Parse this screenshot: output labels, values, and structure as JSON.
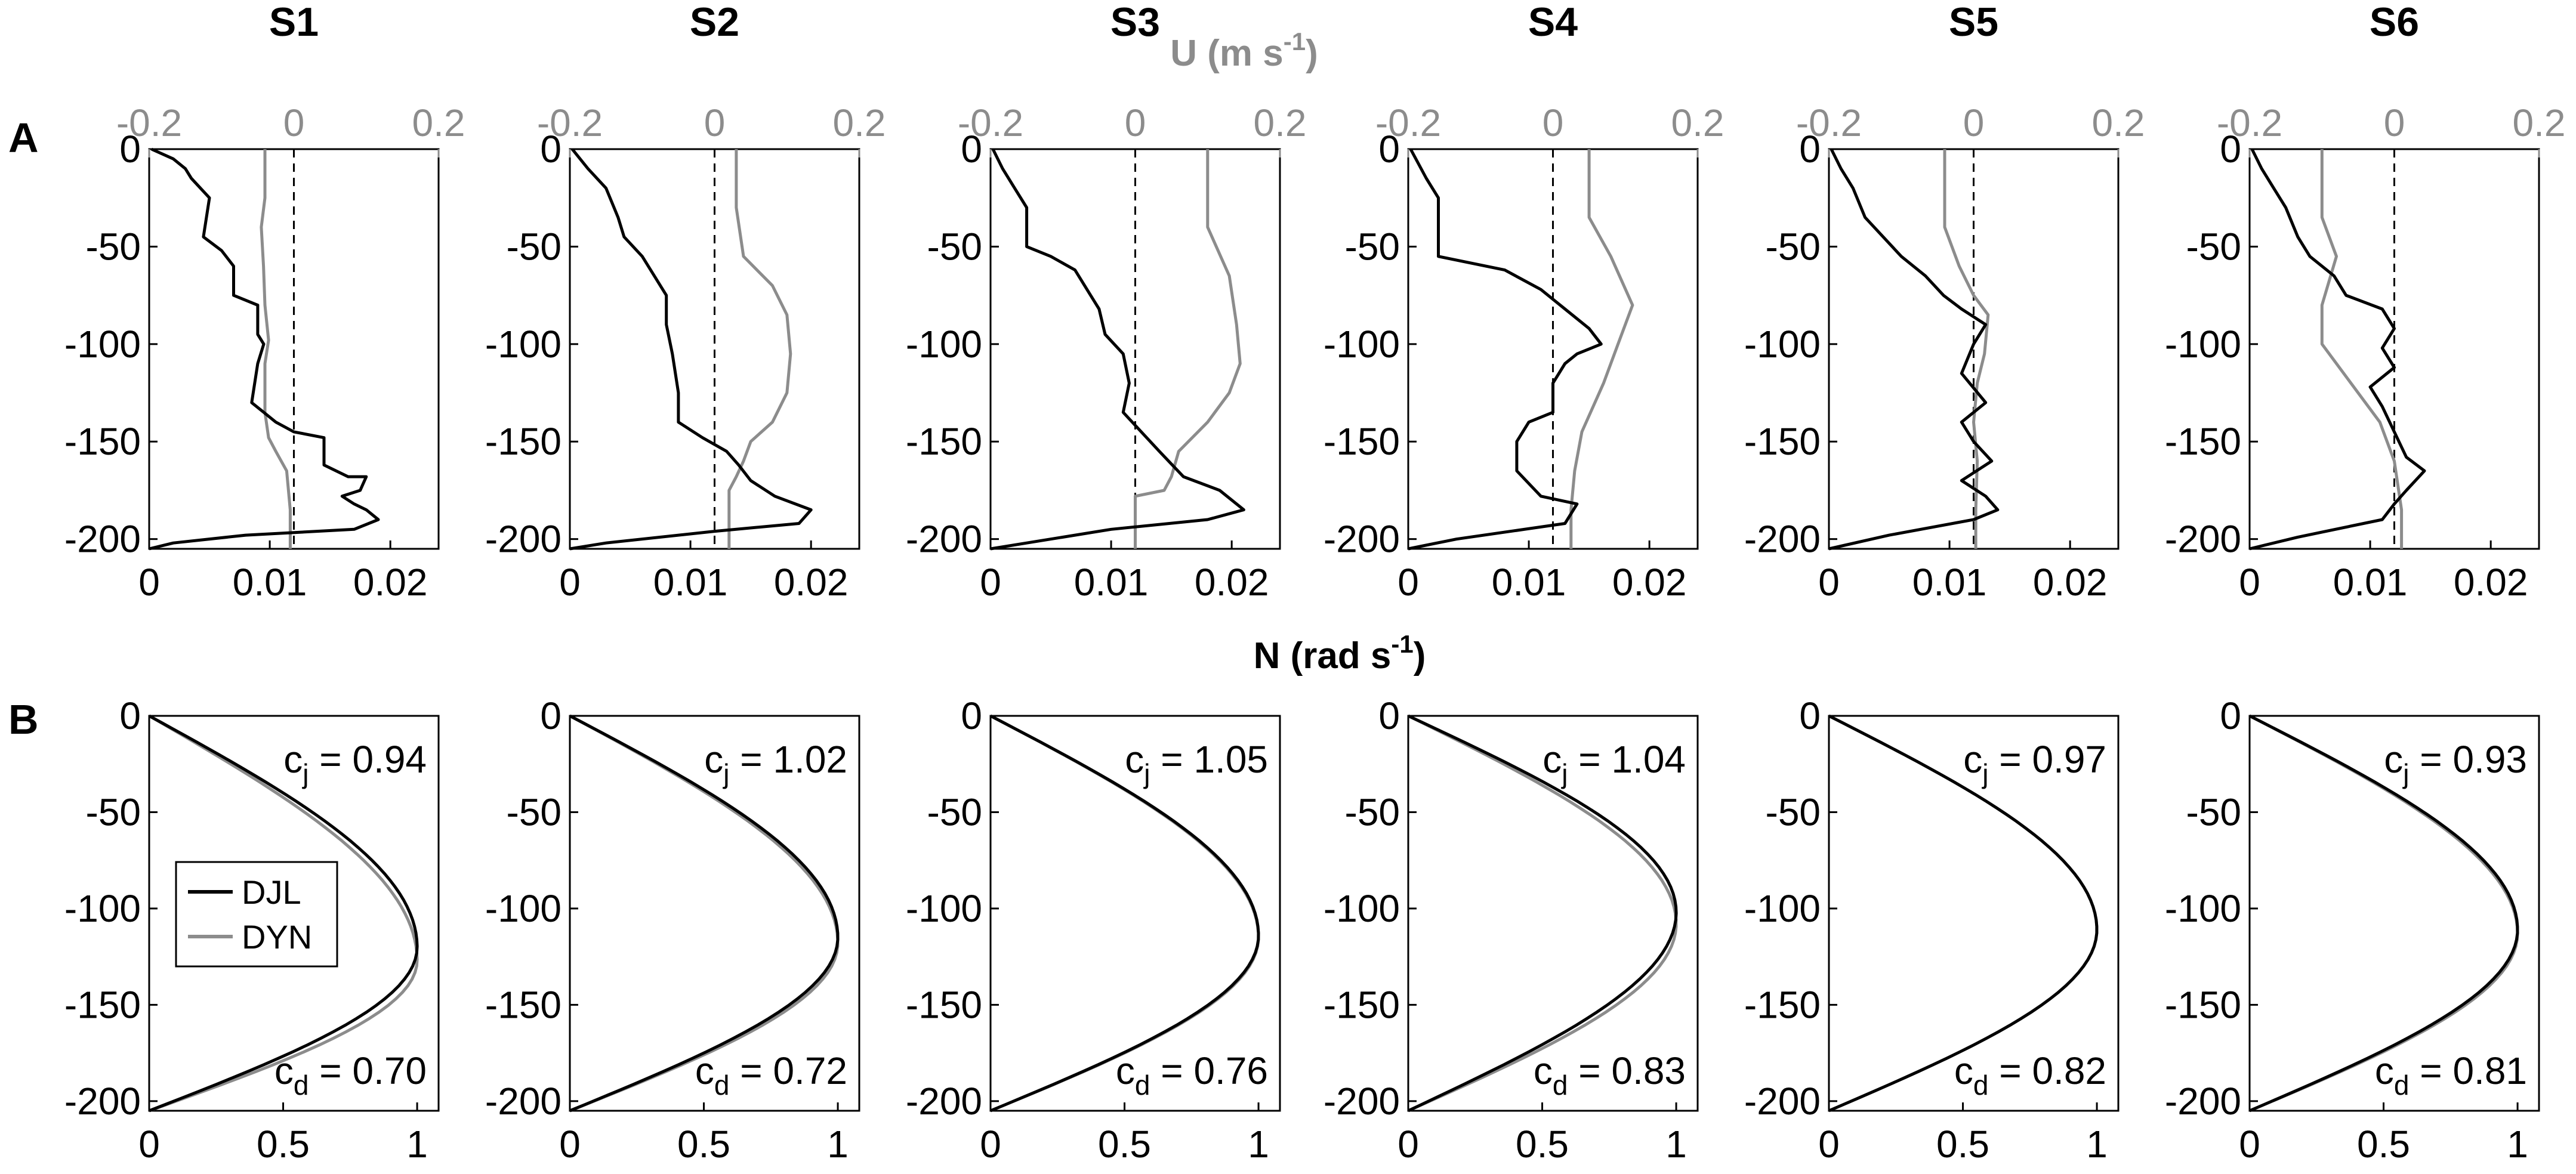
{
  "stations": [
    "S1",
    "S2",
    "S3",
    "S4",
    "S5",
    "S6"
  ],
  "panel_letters": [
    "A",
    "B"
  ],
  "colors": {
    "djl": "#000000",
    "dyn": "#8c8c8c",
    "axis": "#000000",
    "u_axis": "#8c8c8c"
  },
  "chart_data": [
    {
      "type": "line",
      "panel": "A",
      "top_axis": {
        "label": "U (m s-1)",
        "label_main": "U (m s",
        "label_sup": "-1",
        "label_close": ")",
        "range": [
          -0.2,
          0.2
        ],
        "ticks": [
          -0.2,
          0,
          0.2
        ],
        "tick_labels": [
          "-0.2",
          "0",
          "0.2"
        ]
      },
      "bottom_axis": {
        "label": "N (rad s-1)",
        "label_main": "N (rad s",
        "label_sup": "-1",
        "label_close": ")",
        "range": [
          0,
          0.024
        ],
        "ticks": [
          0,
          0.01,
          0.02
        ],
        "tick_labels": [
          "0",
          "0.01",
          "0.02"
        ]
      },
      "y_axis": {
        "range": [
          -205,
          0
        ],
        "ticks": [
          0,
          -50,
          -100,
          -150,
          -200
        ],
        "tick_labels": [
          "0",
          "-50",
          "-100",
          "-150",
          "-200"
        ]
      },
      "reference_line": {
        "U": 0,
        "style": "dashed"
      },
      "series_per_station": [
        {
          "station": "S1",
          "N_profile": [
            [
              0.0002,
              0
            ],
            [
              0.002,
              -5
            ],
            [
              0.003,
              -10
            ],
            [
              0.0035,
              -15
            ],
            [
              0.005,
              -25
            ],
            [
              0.0045,
              -45
            ],
            [
              0.006,
              -52
            ],
            [
              0.007,
              -60
            ],
            [
              0.007,
              -75
            ],
            [
              0.009,
              -80
            ],
            [
              0.009,
              -95
            ],
            [
              0.0095,
              -100
            ],
            [
              0.009,
              -110
            ],
            [
              0.0085,
              -130
            ],
            [
              0.0095,
              -135
            ],
            [
              0.0105,
              -140
            ],
            [
              0.012,
              -145
            ],
            [
              0.0145,
              -148
            ],
            [
              0.0145,
              -162
            ],
            [
              0.0165,
              -168
            ],
            [
              0.018,
              -168
            ],
            [
              0.0175,
              -175
            ],
            [
              0.016,
              -178
            ],
            [
              0.017,
              -182
            ],
            [
              0.018,
              -185
            ],
            [
              0.019,
              -190
            ],
            [
              0.017,
              -195
            ],
            [
              0.008,
              -198
            ],
            [
              0.002,
              -202
            ],
            [
              0.0,
              -205
            ]
          ],
          "U_profile": [
            [
              -0.04,
              0
            ],
            [
              -0.04,
              -25
            ],
            [
              -0.045,
              -40
            ],
            [
              -0.042,
              -60
            ],
            [
              -0.04,
              -80
            ],
            [
              -0.035,
              -98
            ],
            [
              -0.04,
              -110
            ],
            [
              -0.04,
              -135
            ],
            [
              -0.035,
              -148
            ],
            [
              -0.025,
              -155
            ],
            [
              -0.01,
              -165
            ],
            [
              -0.005,
              -185
            ],
            [
              -0.005,
              -205
            ]
          ]
        },
        {
          "station": "S2",
          "N_profile": [
            [
              0.0002,
              0
            ],
            [
              0.0015,
              -10
            ],
            [
              0.003,
              -20
            ],
            [
              0.004,
              -35
            ],
            [
              0.0045,
              -45
            ],
            [
              0.006,
              -55
            ],
            [
              0.007,
              -65
            ],
            [
              0.008,
              -75
            ],
            [
              0.008,
              -90
            ],
            [
              0.0085,
              -105
            ],
            [
              0.009,
              -125
            ],
            [
              0.009,
              -140
            ],
            [
              0.011,
              -148
            ],
            [
              0.013,
              -155
            ],
            [
              0.014,
              -162
            ],
            [
              0.015,
              -170
            ],
            [
              0.017,
              -178
            ],
            [
              0.02,
              -185
            ],
            [
              0.019,
              -192
            ],
            [
              0.012,
              -196
            ],
            [
              0.003,
              -202
            ],
            [
              0.0,
              -205
            ]
          ],
          "U_profile": [
            [
              0.03,
              0
            ],
            [
              0.03,
              -30
            ],
            [
              0.04,
              -55
            ],
            [
              0.08,
              -70
            ],
            [
              0.1,
              -85
            ],
            [
              0.105,
              -105
            ],
            [
              0.1,
              -125
            ],
            [
              0.08,
              -140
            ],
            [
              0.05,
              -150
            ],
            [
              0.04,
              -160
            ],
            [
              0.03,
              -168
            ],
            [
              0.02,
              -175
            ],
            [
              0.02,
              -205
            ]
          ]
        },
        {
          "station": "S3",
          "N_profile": [
            [
              0.0002,
              0
            ],
            [
              0.001,
              -10
            ],
            [
              0.002,
              -20
            ],
            [
              0.003,
              -30
            ],
            [
              0.003,
              -50
            ],
            [
              0.005,
              -55
            ],
            [
              0.007,
              -62
            ],
            [
              0.008,
              -72
            ],
            [
              0.009,
              -82
            ],
            [
              0.0095,
              -95
            ],
            [
              0.011,
              -105
            ],
            [
              0.0115,
              -120
            ],
            [
              0.011,
              -135
            ],
            [
              0.0125,
              -145
            ],
            [
              0.014,
              -155
            ],
            [
              0.016,
              -168
            ],
            [
              0.019,
              -175
            ],
            [
              0.021,
              -185
            ],
            [
              0.018,
              -190
            ],
            [
              0.01,
              -195
            ],
            [
              0.003,
              -202
            ],
            [
              0.0,
              -205
            ]
          ],
          "U_profile": [
            [
              0.1,
              0
            ],
            [
              0.1,
              -40
            ],
            [
              0.13,
              -65
            ],
            [
              0.14,
              -90
            ],
            [
              0.145,
              -110
            ],
            [
              0.13,
              -125
            ],
            [
              0.1,
              -140
            ],
            [
              0.06,
              -155
            ],
            [
              0.05,
              -168
            ],
            [
              0.04,
              -175
            ],
            [
              0.0,
              -178
            ],
            [
              0.0,
              -205
            ]
          ]
        },
        {
          "station": "S4",
          "N_profile": [
            [
              0.0002,
              0
            ],
            [
              0.0015,
              -15
            ],
            [
              0.0025,
              -25
            ],
            [
              0.0025,
              -55
            ],
            [
              0.008,
              -62
            ],
            [
              0.011,
              -72
            ],
            [
              0.013,
              -82
            ],
            [
              0.015,
              -92
            ],
            [
              0.016,
              -100
            ],
            [
              0.014,
              -105
            ],
            [
              0.013,
              -110
            ],
            [
              0.012,
              -120
            ],
            [
              0.012,
              -135
            ],
            [
              0.01,
              -140
            ],
            [
              0.009,
              -150
            ],
            [
              0.009,
              -165
            ],
            [
              0.011,
              -178
            ],
            [
              0.014,
              -182
            ],
            [
              0.013,
              -192
            ],
            [
              0.004,
              -200
            ],
            [
              0.0,
              -205
            ]
          ],
          "U_profile": [
            [
              0.05,
              0
            ],
            [
              0.05,
              -35
            ],
            [
              0.08,
              -55
            ],
            [
              0.11,
              -80
            ],
            [
              0.09,
              -100
            ],
            [
              0.07,
              -120
            ],
            [
              0.04,
              -145
            ],
            [
              0.03,
              -165
            ],
            [
              0.025,
              -185
            ],
            [
              0.025,
              -205
            ]
          ]
        },
        {
          "station": "S5",
          "N_profile": [
            [
              0.0002,
              0
            ],
            [
              0.001,
              -10
            ],
            [
              0.002,
              -20
            ],
            [
              0.003,
              -35
            ],
            [
              0.0045,
              -45
            ],
            [
              0.006,
              -55
            ],
            [
              0.008,
              -65
            ],
            [
              0.0095,
              -75
            ],
            [
              0.011,
              -82
            ],
            [
              0.013,
              -90
            ],
            [
              0.012,
              -100
            ],
            [
              0.011,
              -115
            ],
            [
              0.013,
              -130
            ],
            [
              0.011,
              -140
            ],
            [
              0.012,
              -150
            ],
            [
              0.0135,
              -160
            ],
            [
              0.011,
              -170
            ],
            [
              0.013,
              -178
            ],
            [
              0.014,
              -185
            ],
            [
              0.012,
              -190
            ],
            [
              0.005,
              -198
            ],
            [
              0.0,
              -205
            ]
          ],
          "U_profile": [
            [
              -0.04,
              0
            ],
            [
              -0.04,
              -40
            ],
            [
              -0.02,
              -60
            ],
            [
              0.0,
              -75
            ],
            [
              0.02,
              -85
            ],
            [
              0.015,
              -105
            ],
            [
              0.005,
              -120
            ],
            [
              0.0,
              -140
            ],
            [
              0.005,
              -160
            ],
            [
              0.003,
              -185
            ],
            [
              0.003,
              -205
            ]
          ]
        },
        {
          "station": "S6",
          "N_profile": [
            [
              0.0002,
              0
            ],
            [
              0.001,
              -10
            ],
            [
              0.002,
              -20
            ],
            [
              0.003,
              -30
            ],
            [
              0.004,
              -45
            ],
            [
              0.005,
              -55
            ],
            [
              0.007,
              -65
            ],
            [
              0.008,
              -75
            ],
            [
              0.011,
              -82
            ],
            [
              0.012,
              -92
            ],
            [
              0.011,
              -102
            ],
            [
              0.012,
              -112
            ],
            [
              0.01,
              -122
            ],
            [
              0.011,
              -132
            ],
            [
              0.012,
              -145
            ],
            [
              0.013,
              -158
            ],
            [
              0.0145,
              -165
            ],
            [
              0.013,
              -175
            ],
            [
              0.012,
              -182
            ],
            [
              0.011,
              -190
            ],
            [
              0.004,
              -199
            ],
            [
              0.0,
              -205
            ]
          ],
          "U_profile": [
            [
              -0.1,
              0
            ],
            [
              -0.1,
              -35
            ],
            [
              -0.08,
              -55
            ],
            [
              -0.1,
              -80
            ],
            [
              -0.1,
              -100
            ],
            [
              -0.06,
              -120
            ],
            [
              -0.02,
              -140
            ],
            [
              0.0,
              -160
            ],
            [
              0.01,
              -185
            ],
            [
              0.01,
              -205
            ]
          ]
        }
      ]
    },
    {
      "type": "line",
      "panel": "B",
      "x_axis": {
        "range": [
          0,
          1.08
        ],
        "ticks": [
          0,
          0.5,
          1
        ],
        "tick_labels": [
          "0",
          "0.5",
          "1"
        ]
      },
      "y_axis": {
        "range": [
          -205,
          0
        ],
        "ticks": [
          0,
          -50,
          -100,
          -150,
          -200
        ],
        "tick_labels": [
          "0",
          "-50",
          "-100",
          "-150",
          "-200"
        ]
      },
      "legend": {
        "entries": [
          "DJL",
          "DYN"
        ],
        "placement": "middle-left",
        "station": "S1"
      },
      "series_per_station": [
        {
          "station": "S1",
          "cj": "0.94",
          "cd": "0.70",
          "DJL_peak_z": -120,
          "DYN_peak_z": -127
        },
        {
          "station": "S2",
          "cj": "1.02",
          "cd": "0.72",
          "DJL_peak_z": -115,
          "DYN_peak_z": -118
        },
        {
          "station": "S3",
          "cj": "1.05",
          "cd": "0.76",
          "DJL_peak_z": -114,
          "DYN_peak_z": -115
        },
        {
          "station": "S4",
          "cj": "1.04",
          "cd": "0.83",
          "DJL_peak_z": -102,
          "DYN_peak_z": -108
        },
        {
          "station": "S5",
          "cj": "0.97",
          "cd": "0.82",
          "DJL_peak_z": -111,
          "DYN_peak_z": -111
        },
        {
          "station": "S6",
          "cj": "0.93",
          "cd": "0.81",
          "DJL_peak_z": -111,
          "DYN_peak_z": -113
        }
      ],
      "annotation_labels": {
        "cj": "c",
        "cj_sub": "j",
        "cd": "c",
        "cd_sub": "d"
      }
    }
  ]
}
